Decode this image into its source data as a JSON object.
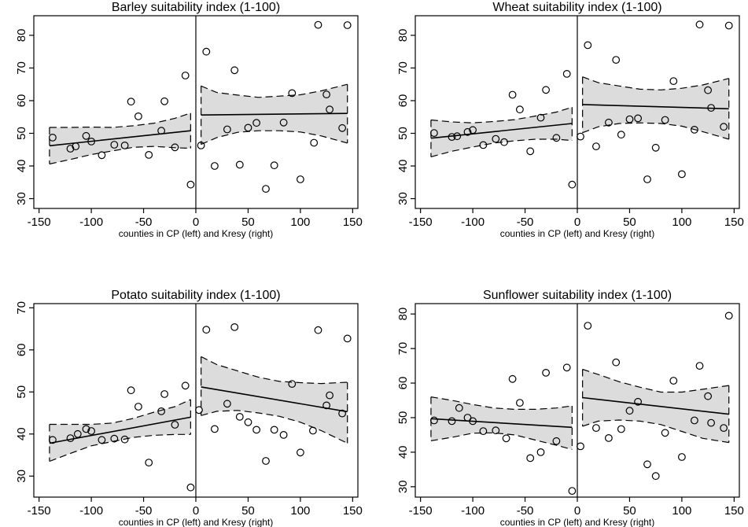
{
  "chart_data": [
    {
      "type": "scatter",
      "title": "Barley suitability index (1-100)",
      "xlabel": "counties in CP (left) and Kresy (right)",
      "ylabel": "",
      "xlim": [
        -155,
        155
      ],
      "ylim": [
        27,
        86
      ],
      "xticks": [
        -150,
        -100,
        -50,
        0,
        50,
        100,
        150
      ],
      "yticks": [
        30,
        40,
        50,
        60,
        70,
        80
      ],
      "cutoff": 0,
      "points": [
        [
          -137,
          48.7
        ],
        [
          -120,
          45.3
        ],
        [
          -115,
          46
        ],
        [
          -105,
          49.2
        ],
        [
          -100,
          47.5
        ],
        [
          -90,
          43.3
        ],
        [
          -78,
          46.5
        ],
        [
          -68,
          46.3
        ],
        [
          -62,
          59.7
        ],
        [
          -55,
          55.2
        ],
        [
          -45,
          43.4
        ],
        [
          -33,
          50.8
        ],
        [
          -30,
          59.8
        ],
        [
          -20,
          45.7
        ],
        [
          -10,
          67.7
        ],
        [
          -5,
          34.3
        ],
        [
          5,
          46.3
        ],
        [
          10,
          75
        ],
        [
          18,
          40
        ],
        [
          30,
          51.2
        ],
        [
          37,
          69.3
        ],
        [
          42,
          40.4
        ],
        [
          50,
          51.7
        ],
        [
          58,
          53.2
        ],
        [
          67,
          33
        ],
        [
          75,
          40.2
        ],
        [
          84,
          53.3
        ],
        [
          92,
          62.3
        ],
        [
          100,
          35.9
        ],
        [
          113,
          47.1
        ],
        [
          117,
          83.2
        ],
        [
          125,
          61.9
        ],
        [
          128,
          57.3
        ],
        [
          140,
          51.6
        ],
        [
          145,
          83.1
        ]
      ],
      "fit_left": [
        [
          -140,
          46.2
        ],
        [
          -5,
          50.8
        ]
      ],
      "fit_right": [
        [
          5,
          55.6
        ],
        [
          145,
          56.1
        ]
      ],
      "ci_left_upper": [
        [
          -140,
          51.8
        ],
        [
          -120,
          51.8
        ],
        [
          -100,
          51.9
        ],
        [
          -80,
          51.8
        ],
        [
          -60,
          52.3
        ],
        [
          -40,
          53.1
        ],
        [
          -20,
          54.6
        ],
        [
          -5,
          56.2
        ]
      ],
      "ci_left_lower": [
        [
          -140,
          40.6
        ],
        [
          -120,
          42
        ],
        [
          -100,
          43.5
        ],
        [
          -80,
          44.6
        ],
        [
          -60,
          45.7
        ],
        [
          -40,
          46
        ],
        [
          -20,
          45.6
        ],
        [
          -5,
          45.4
        ]
      ],
      "ci_right_upper": [
        [
          5,
          64.5
        ],
        [
          20,
          62.5
        ],
        [
          40,
          61.7
        ],
        [
          60,
          61
        ],
        [
          80,
          61.4
        ],
        [
          100,
          61.8
        ],
        [
          120,
          63
        ],
        [
          145,
          65
        ]
      ],
      "ci_right_lower": [
        [
          5,
          46.6
        ],
        [
          20,
          48.7
        ],
        [
          40,
          50.3
        ],
        [
          60,
          50.8
        ],
        [
          80,
          50.8
        ],
        [
          100,
          50.4
        ],
        [
          120,
          49.2
        ],
        [
          145,
          47
        ]
      ]
    },
    {
      "type": "scatter",
      "title": "Wheat suitability index (1-100)",
      "xlabel": "counties in CP (left) and Kresy (right)",
      "ylabel": "",
      "xlim": [
        -155,
        155
      ],
      "ylim": [
        27,
        86
      ],
      "xticks": [
        -150,
        -100,
        -50,
        0,
        50,
        100,
        150
      ],
      "yticks": [
        30,
        40,
        50,
        60,
        70,
        80
      ],
      "cutoff": 0,
      "points": [
        [
          -137,
          50.1
        ],
        [
          -120,
          48.9
        ],
        [
          -115,
          49.1
        ],
        [
          -105,
          50.4
        ],
        [
          -100,
          51
        ],
        [
          -90,
          46.4
        ],
        [
          -78,
          48.3
        ],
        [
          -70,
          47.3
        ],
        [
          -62,
          61.8
        ],
        [
          -55,
          57.3
        ],
        [
          -45,
          44.5
        ],
        [
          -35,
          54.8
        ],
        [
          -30,
          63.3
        ],
        [
          -20,
          48.6
        ],
        [
          -10,
          68.2
        ],
        [
          -5,
          34.3
        ],
        [
          3,
          49
        ],
        [
          10,
          77
        ],
        [
          18,
          46
        ],
        [
          30,
          53.3
        ],
        [
          37,
          72.5
        ],
        [
          42,
          49.6
        ],
        [
          50,
          54.3
        ],
        [
          58,
          54.6
        ],
        [
          67,
          35.9
        ],
        [
          75,
          45.6
        ],
        [
          84,
          54.1
        ],
        [
          92,
          66
        ],
        [
          100,
          37.5
        ],
        [
          112,
          51.1
        ],
        [
          117,
          83.3
        ],
        [
          125,
          63.2
        ],
        [
          128,
          57.8
        ],
        [
          140,
          52
        ],
        [
          145,
          83
        ]
      ],
      "fit_left": [
        [
          -140,
          48.5
        ],
        [
          -5,
          53
        ]
      ],
      "fit_right": [
        [
          5,
          58.8
        ],
        [
          145,
          57.5
        ]
      ],
      "ci_left_upper": [
        [
          -140,
          54.1
        ],
        [
          -120,
          53.5
        ],
        [
          -100,
          53.2
        ],
        [
          -80,
          53.6
        ],
        [
          -60,
          54.2
        ],
        [
          -40,
          55.3
        ],
        [
          -20,
          56.5
        ],
        [
          -5,
          58
        ]
      ],
      "ci_left_lower": [
        [
          -140,
          42.8
        ],
        [
          -120,
          44.5
        ],
        [
          -100,
          45.8
        ],
        [
          -80,
          47
        ],
        [
          -60,
          47.7
        ],
        [
          -40,
          48.2
        ],
        [
          -20,
          48.2
        ],
        [
          -5,
          47.8
        ]
      ],
      "ci_right_upper": [
        [
          5,
          67.3
        ],
        [
          20,
          65.5
        ],
        [
          40,
          64.5
        ],
        [
          60,
          63.5
        ],
        [
          80,
          63.3
        ],
        [
          100,
          63.8
        ],
        [
          120,
          64.8
        ],
        [
          145,
          66.8
        ]
      ],
      "ci_right_lower": [
        [
          5,
          50.2
        ],
        [
          20,
          52
        ],
        [
          40,
          53
        ],
        [
          60,
          53.2
        ],
        [
          80,
          53
        ],
        [
          100,
          52.2
        ],
        [
          120,
          50.5
        ],
        [
          145,
          48.2
        ]
      ]
    },
    {
      "type": "scatter",
      "title": "Potato suitability index (1-100)",
      "xlabel": "counties in CP (left) and Kresy (right)",
      "ylabel": "",
      "xlim": [
        -155,
        155
      ],
      "ylim": [
        25,
        71
      ],
      "xticks": [
        -150,
        -100,
        -50,
        0,
        50,
        100,
        150
      ],
      "yticks": [
        30,
        40,
        50,
        60,
        70
      ],
      "cutoff": 0,
      "points": [
        [
          -137,
          38.6
        ],
        [
          -120,
          39
        ],
        [
          -113,
          40
        ],
        [
          -105,
          41.2
        ],
        [
          -100,
          40.7
        ],
        [
          -90,
          38.6
        ],
        [
          -78,
          38.9
        ],
        [
          -68,
          38.7
        ],
        [
          -62,
          50.4
        ],
        [
          -55,
          46.5
        ],
        [
          -45,
          33.2
        ],
        [
          -33,
          45.4
        ],
        [
          -30,
          49.5
        ],
        [
          -20,
          42.2
        ],
        [
          -10,
          51.5
        ],
        [
          -5,
          27.3
        ],
        [
          3,
          45.7
        ],
        [
          10,
          64.8
        ],
        [
          18,
          41.2
        ],
        [
          30,
          47.2
        ],
        [
          37,
          65.4
        ],
        [
          42,
          44.1
        ],
        [
          50,
          42.8
        ],
        [
          58,
          41
        ],
        [
          67,
          33.6
        ],
        [
          75,
          41
        ],
        [
          84,
          39.8
        ],
        [
          92,
          51.9
        ],
        [
          100,
          35.6
        ],
        [
          112,
          40.8
        ],
        [
          117,
          64.7
        ],
        [
          125,
          46.8
        ],
        [
          128,
          49.2
        ],
        [
          140,
          44.9
        ],
        [
          145,
          62.7
        ]
      ],
      "fit_left": [
        [
          -140,
          37.8
        ],
        [
          -5,
          44
        ]
      ],
      "fit_right": [
        [
          5,
          51.2
        ],
        [
          145,
          45.3
        ]
      ],
      "ci_left_upper": [
        [
          -140,
          42.3
        ],
        [
          -120,
          42.3
        ],
        [
          -100,
          42.3
        ],
        [
          -80,
          42.6
        ],
        [
          -60,
          43.7
        ],
        [
          -40,
          45.2
        ],
        [
          -20,
          46.5
        ],
        [
          -5,
          48.2
        ]
      ],
      "ci_left_lower": [
        [
          -140,
          33.5
        ],
        [
          -120,
          35.4
        ],
        [
          -100,
          37.2
        ],
        [
          -80,
          38.2
        ],
        [
          -60,
          39.2
        ],
        [
          -40,
          39.7
        ],
        [
          -20,
          39.9
        ],
        [
          -5,
          39.9
        ]
      ],
      "ci_right_upper": [
        [
          5,
          58.4
        ],
        [
          20,
          56.5
        ],
        [
          40,
          55
        ],
        [
          60,
          53.5
        ],
        [
          80,
          52.5
        ],
        [
          100,
          52.2
        ],
        [
          120,
          52
        ],
        [
          145,
          52.3
        ]
      ],
      "ci_right_lower": [
        [
          5,
          44.4
        ],
        [
          20,
          45.4
        ],
        [
          40,
          45.6
        ],
        [
          60,
          45
        ],
        [
          80,
          44.2
        ],
        [
          100,
          42.8
        ],
        [
          120,
          40.8
        ],
        [
          145,
          37.8
        ]
      ]
    },
    {
      "type": "scatter",
      "title": "Sunflower suitability index (1-100)",
      "xlabel": "counties in CP (left) and Kresy (right)",
      "ylabel": "",
      "xlim": [
        -155,
        155
      ],
      "ylim": [
        27,
        83
      ],
      "xticks": [
        -150,
        -100,
        -50,
        0,
        50,
        100,
        150
      ],
      "yticks": [
        30,
        40,
        50,
        60,
        70,
        80
      ],
      "cutoff": 0,
      "points": [
        [
          -137,
          49.2
        ],
        [
          -120,
          49
        ],
        [
          -113,
          52.8
        ],
        [
          -105,
          50
        ],
        [
          -100,
          49
        ],
        [
          -90,
          46.1
        ],
        [
          -78,
          46.3
        ],
        [
          -68,
          44
        ],
        [
          -62,
          61.2
        ],
        [
          -55,
          54.3
        ],
        [
          -45,
          38.3
        ],
        [
          -35,
          40
        ],
        [
          -30,
          63
        ],
        [
          -20,
          43.2
        ],
        [
          -10,
          64.5
        ],
        [
          -5,
          28.8
        ],
        [
          3,
          41.7
        ],
        [
          10,
          76.6
        ],
        [
          18,
          47
        ],
        [
          30,
          44.1
        ],
        [
          37,
          66
        ],
        [
          42,
          46.7
        ],
        [
          50,
          52
        ],
        [
          58,
          54.6
        ],
        [
          67,
          36.5
        ],
        [
          75,
          33.1
        ],
        [
          84,
          45.6
        ],
        [
          92,
          60.7
        ],
        [
          100,
          38.6
        ],
        [
          112,
          49.2
        ],
        [
          117,
          65
        ],
        [
          125,
          56.2
        ],
        [
          128,
          48.5
        ],
        [
          140,
          47
        ],
        [
          145,
          79.5
        ]
      ],
      "fit_left": [
        [
          -140,
          49.7
        ],
        [
          -5,
          47.2
        ]
      ],
      "fit_right": [
        [
          5,
          55.8
        ],
        [
          145,
          51
        ]
      ],
      "ci_left_upper": [
        [
          -140,
          56
        ],
        [
          -120,
          55
        ],
        [
          -100,
          53.8
        ],
        [
          -80,
          52.8
        ],
        [
          -60,
          52.4
        ],
        [
          -40,
          52.4
        ],
        [
          -20,
          52.8
        ],
        [
          -5,
          53.4
        ]
      ],
      "ci_left_lower": [
        [
          -140,
          43.3
        ],
        [
          -120,
          44.3
        ],
        [
          -100,
          45.5
        ],
        [
          -80,
          45.6
        ],
        [
          -60,
          45
        ],
        [
          -40,
          43.5
        ],
        [
          -20,
          42
        ],
        [
          -5,
          40.8
        ]
      ],
      "ci_right_upper": [
        [
          5,
          64
        ],
        [
          20,
          62.5
        ],
        [
          40,
          60.4
        ],
        [
          60,
          58.8
        ],
        [
          80,
          57.4
        ],
        [
          100,
          57.4
        ],
        [
          120,
          58.2
        ],
        [
          145,
          59.3
        ]
      ],
      "ci_right_lower": [
        [
          5,
          47.5
        ],
        [
          20,
          49
        ],
        [
          40,
          49.3
        ],
        [
          60,
          49
        ],
        [
          80,
          48
        ],
        [
          100,
          46
        ],
        [
          120,
          44
        ],
        [
          145,
          42.8
        ]
      ]
    }
  ]
}
